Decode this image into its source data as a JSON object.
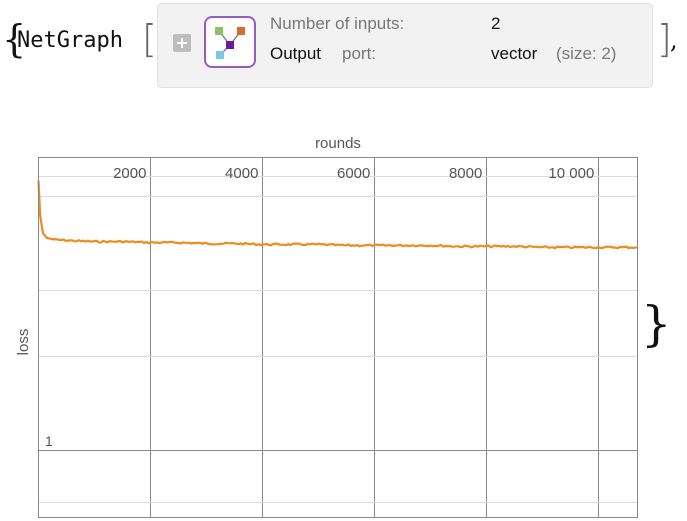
{
  "expression": {
    "open_brace": "{",
    "function": "NetGraph",
    "open_bracket": "[",
    "close_bracket": "]",
    "comma": ",",
    "close_brace": "}"
  },
  "netgraph": {
    "icon": "network-graph-icon",
    "rows": [
      {
        "label": "Number of inputs:",
        "value": "2"
      },
      {
        "label_strong": "Output",
        "label": "port:",
        "value": "vector",
        "detail": "(size: 2)"
      }
    ]
  },
  "colors": {
    "loss_line": "#f08a1c",
    "grid": "#d8d8d8",
    "frame": "#888888",
    "icon_border": "#9b59c6"
  },
  "chart_data": {
    "type": "line",
    "title": "rounds",
    "xlabel": "rounds",
    "ylabel": "loss",
    "x_ticks": [
      "2000",
      "4000",
      "6000",
      "8000",
      "10 000"
    ],
    "x_tick_values": [
      2000,
      4000,
      6000,
      8000,
      10000
    ],
    "y_tick_labels": [
      "1"
    ],
    "xlim": [
      0,
      10700
    ],
    "ylog": true,
    "grid": true,
    "series": [
      {
        "x": [
          0,
          30,
          80,
          150,
          300,
          600,
          1000,
          1500,
          2000,
          2500,
          3000,
          3500,
          4000,
          4500,
          5000,
          5500,
          6000,
          6500,
          7000,
          7500,
          8000,
          8500,
          9000,
          9500,
          10000,
          10500,
          10700
        ],
        "y": [
          3.2,
          2.75,
          2.55,
          2.5,
          2.48,
          2.47,
          2.46,
          2.46,
          2.45,
          2.45,
          2.44,
          2.44,
          2.43,
          2.43,
          2.43,
          2.42,
          2.42,
          2.42,
          2.42,
          2.41,
          2.41,
          2.41,
          2.4,
          2.4,
          2.4,
          2.4,
          2.4
        ]
      }
    ]
  }
}
